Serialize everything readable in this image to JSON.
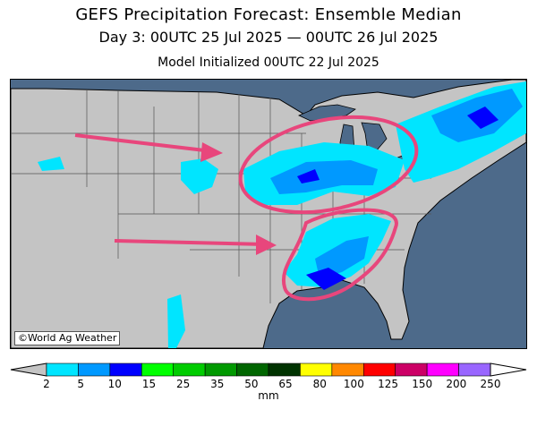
{
  "header": {
    "title": "GEFS Precipitation Forecast: Ensemble Median",
    "period": "Day 3: 00UTC 25 Jul 2025 — 00UTC 26 Jul 2025",
    "init": "Model Initialized 00UTC 22 Jul 2025"
  },
  "map": {
    "credit": "©World Ag Weather",
    "ocean_color": "#4d6a8a",
    "land_color": "#c4c4c4",
    "annotation_color": "#e8467c",
    "annotations": [
      "arrow-plains",
      "arrow-southern-plains",
      "circle-midwest-greatlakes",
      "circle-southeast-gulf"
    ]
  },
  "legend": {
    "units": "mm",
    "labels": [
      "2",
      "5",
      "10",
      "15",
      "25",
      "35",
      "50",
      "65",
      "80",
      "100",
      "125",
      "150",
      "200",
      "250"
    ],
    "colors": [
      "#00e5ff",
      "#0099ff",
      "#0000ff",
      "#00ff00",
      "#00cc00",
      "#009900",
      "#006600",
      "#003300",
      "#ffff00",
      "#ff8800",
      "#ff0000",
      "#cc0066",
      "#ff00ff",
      "#9966ff"
    ],
    "under_color": "#c4c4c4",
    "over_color": "#ffffff"
  }
}
